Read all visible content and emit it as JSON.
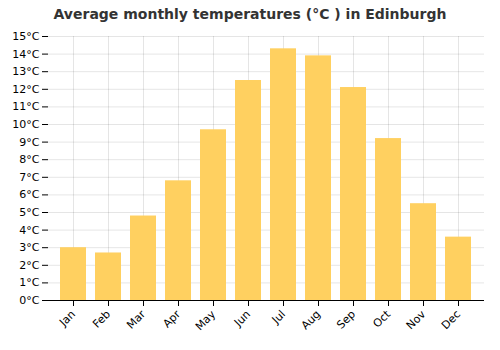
{
  "chart_data": {
    "type": "bar",
    "title": "Average monthly temperatures (°C ) in Edinburgh",
    "categories": [
      "Jan",
      "Feb",
      "Mar",
      "Apr",
      "May",
      "Jun",
      "Jul",
      "Aug",
      "Sep",
      "Oct",
      "Nov",
      "Dec"
    ],
    "values": [
      3.0,
      2.7,
      4.8,
      6.8,
      9.7,
      12.5,
      14.3,
      13.9,
      12.1,
      9.2,
      5.5,
      3.6
    ],
    "color": "#FFD060",
    "ylim": [
      0,
      15
    ],
    "yticks": [
      {
        "value": 0,
        "label": "0°C"
      },
      {
        "value": 1,
        "label": "1°C"
      },
      {
        "value": 2,
        "label": "2°C"
      },
      {
        "value": 3,
        "label": "3°C"
      },
      {
        "value": 4,
        "label": "4°C"
      },
      {
        "value": 5,
        "label": "5°C"
      },
      {
        "value": 6,
        "label": "6°C"
      },
      {
        "value": 7,
        "label": "7°C"
      },
      {
        "value": 8,
        "label": "8°C"
      },
      {
        "value": 9,
        "label": "9°C"
      },
      {
        "value": 10,
        "label": "10°C"
      },
      {
        "value": 11,
        "label": "11°C"
      },
      {
        "value": 12,
        "label": "12°C"
      },
      {
        "value": 13,
        "label": "13°C"
      },
      {
        "value": 14,
        "label": "14°C"
      },
      {
        "value": 15,
        "label": "15°C"
      }
    ],
    "grid": true
  }
}
